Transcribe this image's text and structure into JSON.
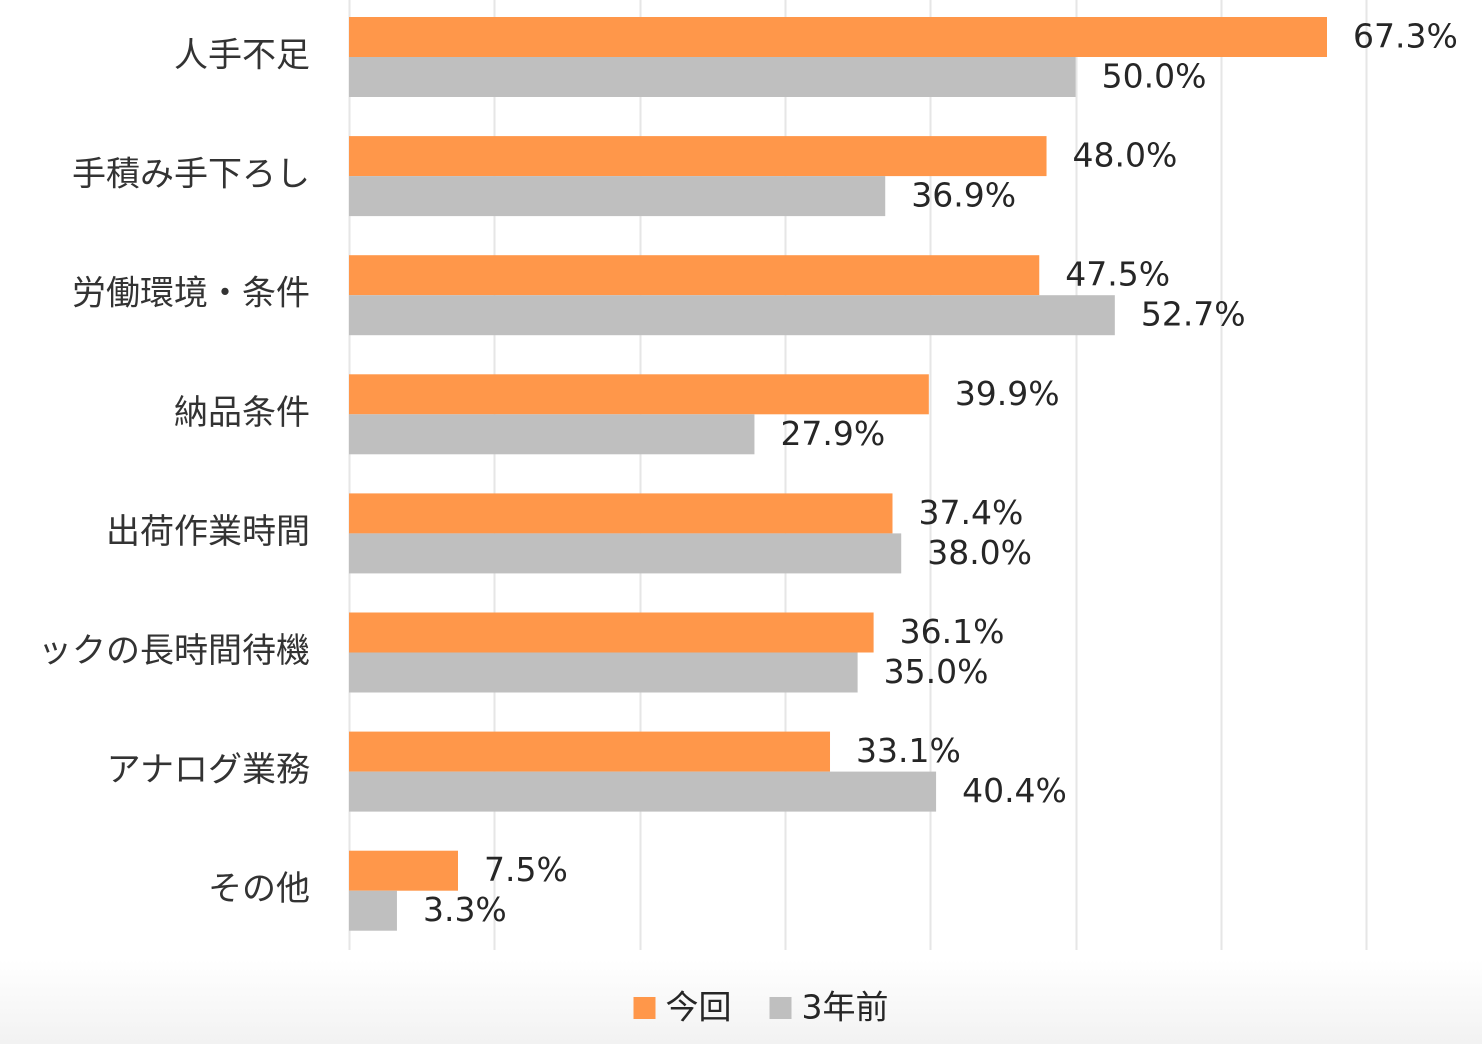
{
  "chart_data": {
    "type": "bar",
    "orientation": "horizontal",
    "categories": [
      "人手不足",
      "手積み手下ろし",
      "労働環境・条件",
      "納品条件",
      "出荷作業時間",
      "ックの長時間待機",
      "アナログ業務",
      "その他"
    ],
    "series": [
      {
        "name": "今回",
        "color": "#FF974A",
        "values": [
          67.3,
          48.0,
          47.5,
          39.9,
          37.4,
          36.1,
          33.1,
          7.5
        ],
        "labels": [
          "67.3%",
          "48.0%",
          "47.5%",
          "39.9%",
          "37.4%",
          "36.1%",
          "33.1%",
          "7.5%"
        ]
      },
      {
        "name": "3年前",
        "color": "#BFBFBF",
        "values": [
          50.0,
          36.9,
          52.7,
          27.9,
          38.0,
          35.0,
          40.4,
          3.3
        ],
        "labels": [
          "50.0%",
          "36.9%",
          "52.7%",
          "27.9%",
          "38.0%",
          "35.0%",
          "40.4%",
          "3.3%"
        ]
      }
    ],
    "xlim": [
      0,
      70
    ],
    "x_gridline_step": 10,
    "grid": true,
    "legend_position": "bottom",
    "gridline_color": "#E6E6E6"
  }
}
